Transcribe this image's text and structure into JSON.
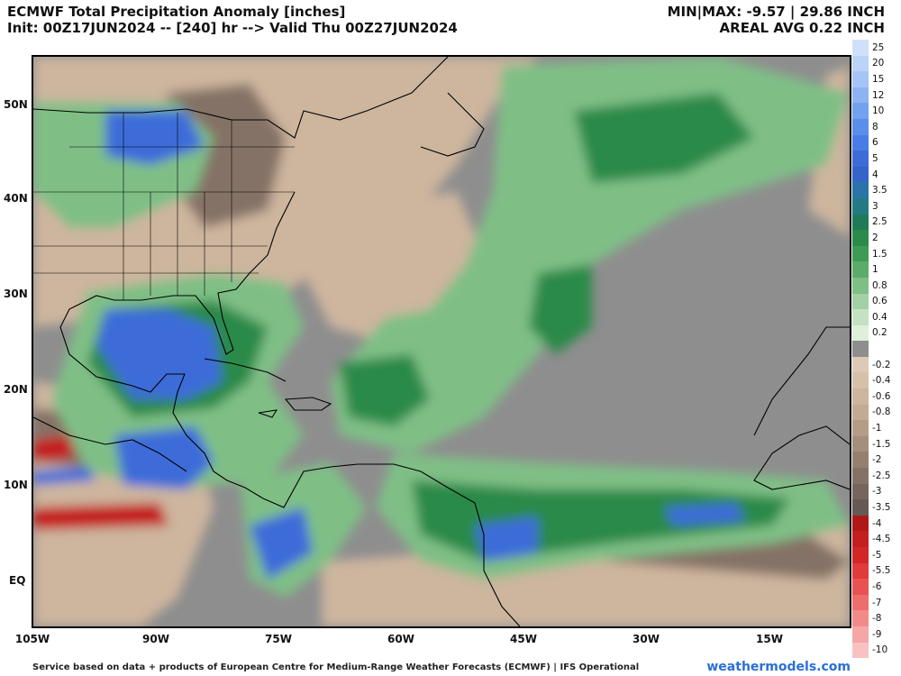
{
  "header": {
    "title": "ECMWF Total Precipitation Anomaly [inches]",
    "subtitle": "Init: 00Z17JUN2024 -- [240] hr --> Valid Thu 00Z27JUN2024",
    "minmax": "MIN|MAX: -9.57 | 29.86 INCH",
    "areal": "AREAL AVG 0.22 INCH"
  },
  "axes": {
    "lat_labels": [
      "50N",
      "40N",
      "30N",
      "20N",
      "10N",
      "EQ"
    ],
    "lon_labels": [
      "105W",
      "90W",
      "75W",
      "60W",
      "45W",
      "30W",
      "15W"
    ]
  },
  "colorbar": [
    {
      "label": "25",
      "color": "#cfe0fb"
    },
    {
      "label": "20",
      "color": "#bcd3f8"
    },
    {
      "label": "15",
      "color": "#a6c4f6"
    },
    {
      "label": "12",
      "color": "#8db3f3"
    },
    {
      "label": "10",
      "color": "#73a1ef"
    },
    {
      "label": "8",
      "color": "#5b8eeb"
    },
    {
      "label": "6",
      "color": "#4a7ce6"
    },
    {
      "label": "5",
      "color": "#3d6cd9"
    },
    {
      "label": "4",
      "color": "#3463c9"
    },
    {
      "label": "3.5",
      "color": "#2c74a8"
    },
    {
      "label": "3",
      "color": "#237a84"
    },
    {
      "label": "2.5",
      "color": "#1f7a58"
    },
    {
      "label": "2",
      "color": "#2c8a4a"
    },
    {
      "label": "1.5",
      "color": "#3f9a55"
    },
    {
      "label": "1",
      "color": "#5aac68"
    },
    {
      "label": "0.8",
      "color": "#7fbf86"
    },
    {
      "label": "0.6",
      "color": "#a3d1a5"
    },
    {
      "label": "0.4",
      "color": "#c4e2c2"
    },
    {
      "label": "0.2",
      "color": "#dff0da"
    },
    {
      "label": "",
      "color": "#8e8e8e"
    },
    {
      "label": "-0.2",
      "color": "#dcc9b6"
    },
    {
      "label": "-0.4",
      "color": "#d6c0aa"
    },
    {
      "label": "-0.6",
      "color": "#cdb59e"
    },
    {
      "label": "-0.8",
      "color": "#c3aa93"
    },
    {
      "label": "-1",
      "color": "#b59c86"
    },
    {
      "label": "-1.5",
      "color": "#a58e7a"
    },
    {
      "label": "-2",
      "color": "#958070"
    },
    {
      "label": "-2.5",
      "color": "#857266"
    },
    {
      "label": "-3",
      "color": "#75655c"
    },
    {
      "label": "-3.5",
      "color": "#665852"
    },
    {
      "label": "-4",
      "color": "#b01818"
    },
    {
      "label": "-4.5",
      "color": "#c41f1f"
    },
    {
      "label": "-5",
      "color": "#d32626"
    },
    {
      "label": "-5.5",
      "color": "#e03a3a"
    },
    {
      "label": "-6",
      "color": "#e85252"
    },
    {
      "label": "-7",
      "color": "#ee6d6d"
    },
    {
      "label": "-8",
      "color": "#f28a8a"
    },
    {
      "label": "-9",
      "color": "#f5a6a6"
    },
    {
      "label": "-10",
      "color": "#f8c2c2"
    }
  ],
  "footer": {
    "credit": "Service based on data + products of European Centre for Medium-Range Weather Forecasts (ECMWF) | IFS Operational",
    "brand": "weathermodels.com"
  },
  "map_colors": {
    "neutral": "#8e8e8e",
    "dry_light": "#cdb59e",
    "dry_dark": "#857266",
    "wet_light": "#7fbf86",
    "wet_mid": "#2c8a4a",
    "wet_heavy": "#3d6cd9",
    "dry_extreme": "#c41f1f",
    "coast": "#000000"
  }
}
